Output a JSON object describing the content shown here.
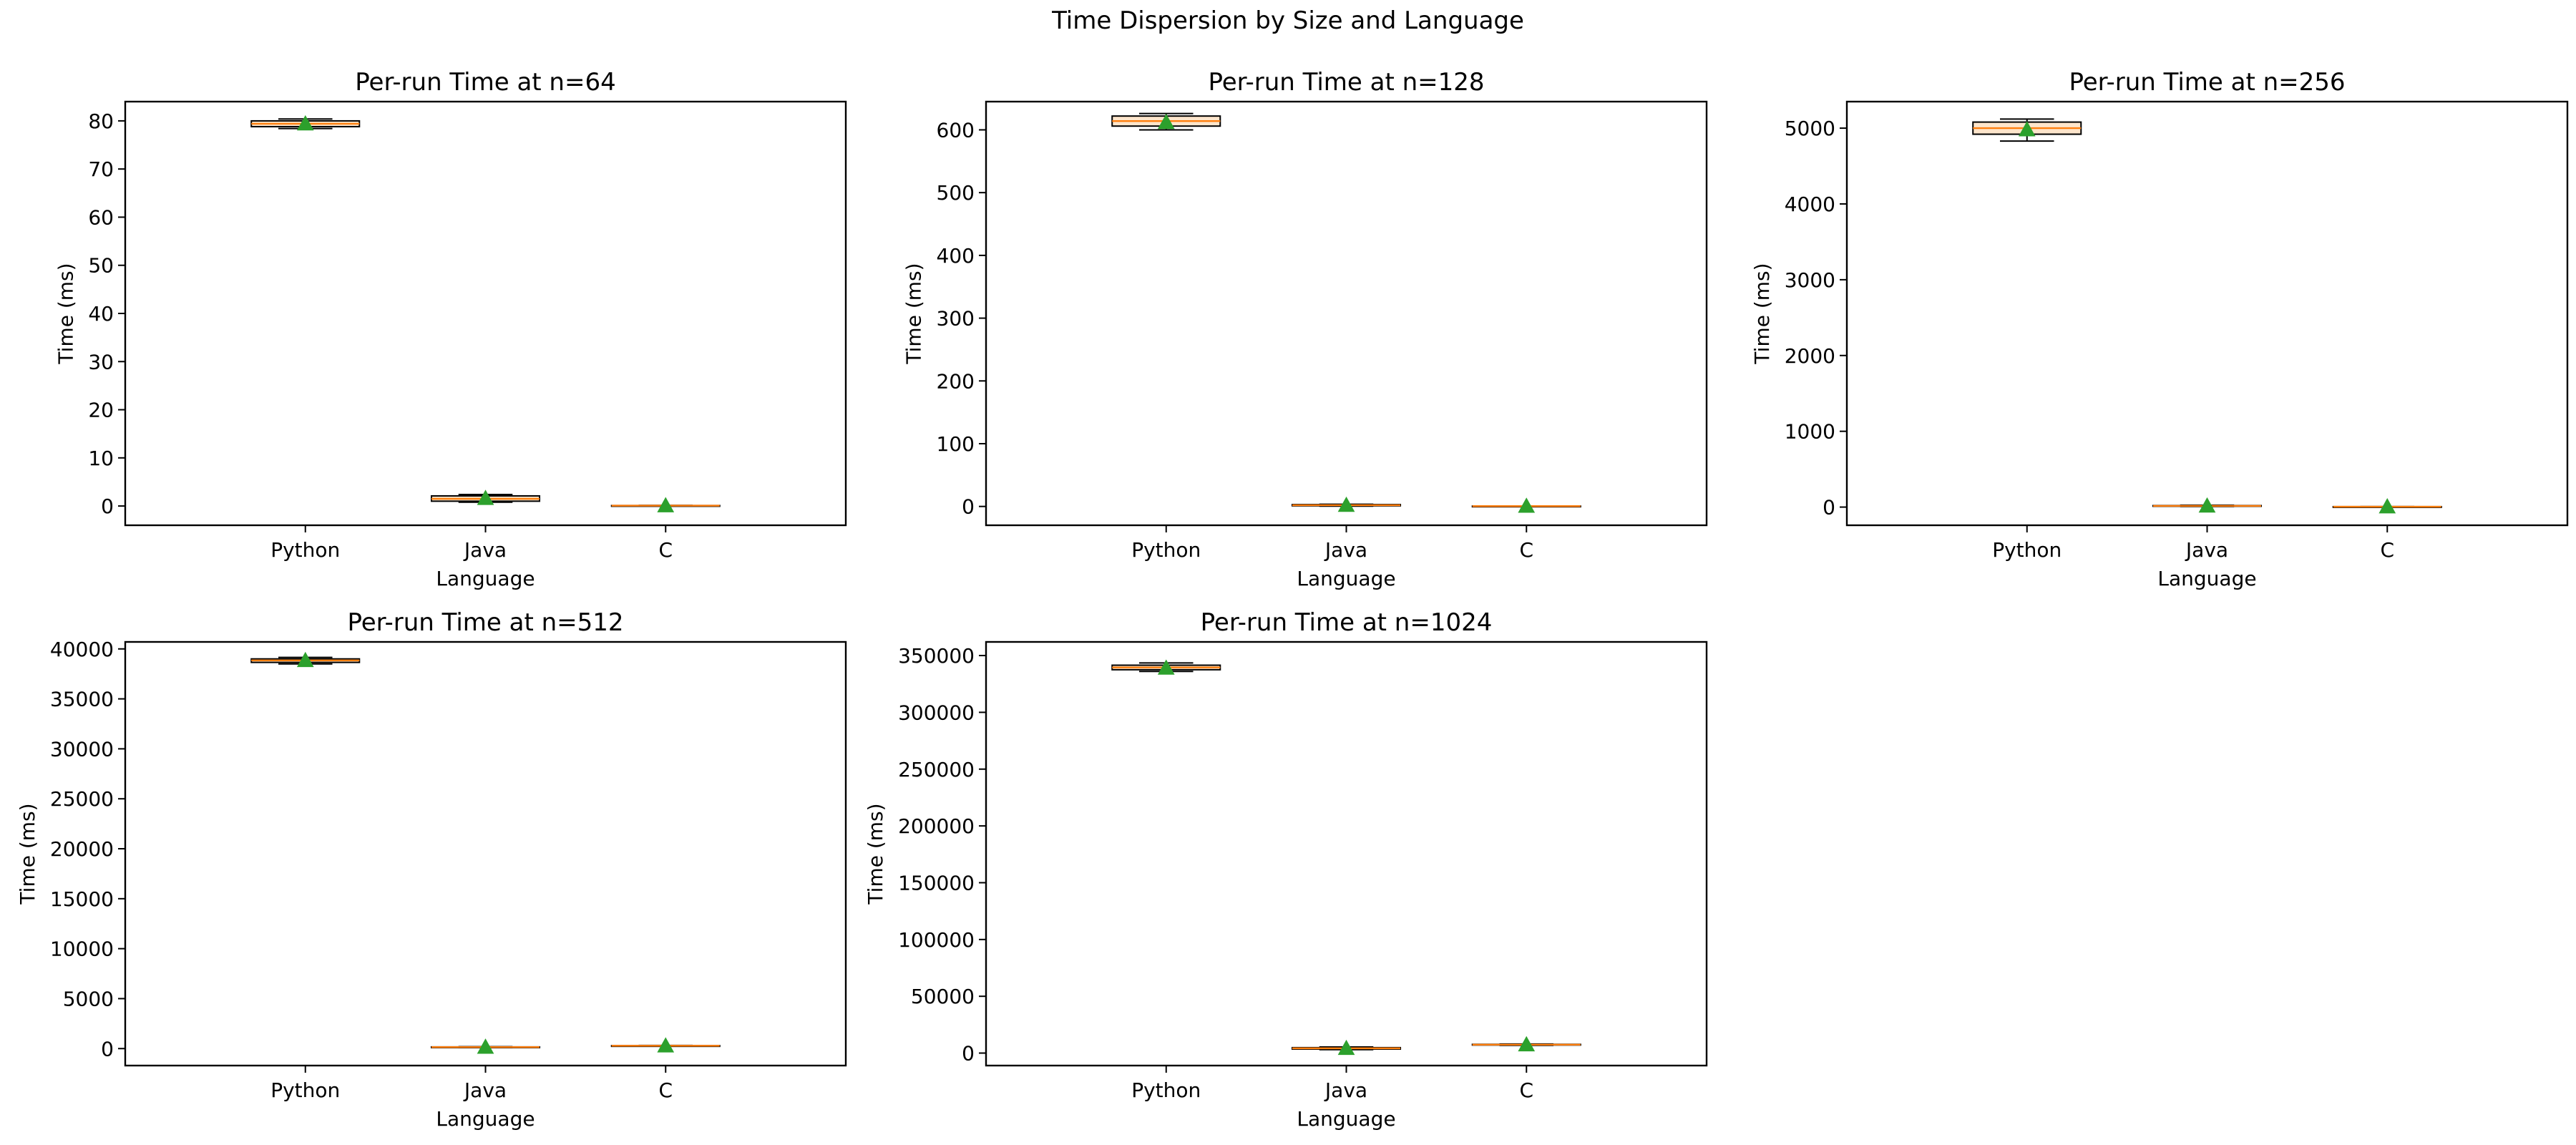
{
  "figure": {
    "suptitle": "Time Dispersion by Size and Language"
  },
  "chart_data": [
    {
      "type": "box",
      "title": "Per-run Time at n=64",
      "xlabel": "Language",
      "ylabel": "Time (ms)",
      "categories": [
        "Python",
        "Java",
        "C"
      ],
      "category_colors": [
        "#0000ff",
        "#ffa500",
        "#800080"
      ],
      "ylim": [
        -4,
        84
      ],
      "yticks": [
        0,
        10,
        20,
        30,
        40,
        50,
        60,
        70,
        80
      ],
      "boxes": [
        {
          "whislo": 78.4,
          "q1": 78.8,
          "med": 79.4,
          "q3": 80.0,
          "whishi": 80.4,
          "mean": 79.4
        },
        {
          "whislo": 0.8,
          "q1": 1.0,
          "med": 1.5,
          "q3": 2.1,
          "whishi": 2.4,
          "mean": 1.6
        },
        {
          "whislo": 0.05,
          "q1": 0.07,
          "med": 0.08,
          "q3": 0.1,
          "whishi": 0.12,
          "mean": 0.08
        }
      ]
    },
    {
      "type": "box",
      "title": "Per-run Time at n=128",
      "xlabel": "Language",
      "ylabel": "Time (ms)",
      "categories": [
        "Python",
        "Java",
        "C"
      ],
      "category_colors": [
        "#0000ff",
        "#ffa500",
        "#800080"
      ],
      "ylim": [
        -30,
        645
      ],
      "yticks": [
        0,
        100,
        200,
        300,
        400,
        500,
        600
      ],
      "boxes": [
        {
          "whislo": 600,
          "q1": 606,
          "med": 614,
          "q3": 622,
          "whishi": 626,
          "mean": 612
        },
        {
          "whislo": 0.5,
          "q1": 1.0,
          "med": 2.0,
          "q3": 3.0,
          "whishi": 3.5,
          "mean": 2.0
        },
        {
          "whislo": 0.3,
          "q1": 0.4,
          "med": 0.5,
          "q3": 0.6,
          "whishi": 0.7,
          "mean": 0.5
        }
      ]
    },
    {
      "type": "box",
      "title": "Per-run Time at n=256",
      "xlabel": "Language",
      "ylabel": "Time (ms)",
      "categories": [
        "Python",
        "Java",
        "C"
      ],
      "category_colors": [
        "#0000ff",
        "#ffa500",
        "#800080"
      ],
      "ylim": [
        -240,
        5350
      ],
      "yticks": [
        0,
        1000,
        2000,
        3000,
        4000,
        5000
      ],
      "boxes": [
        {
          "whislo": 4830,
          "q1": 4920,
          "med": 5000,
          "q3": 5080,
          "whishi": 5120,
          "mean": 4980
        },
        {
          "whislo": 8,
          "q1": 12,
          "med": 16,
          "q3": 20,
          "whishi": 24,
          "mean": 16
        },
        {
          "whislo": 3,
          "q1": 4,
          "med": 5,
          "q3": 6,
          "whishi": 7,
          "mean": 5
        }
      ]
    },
    {
      "type": "box",
      "title": "Per-run Time at n=512",
      "xlabel": "Language",
      "ylabel": "Time (ms)",
      "categories": [
        "Python",
        "Java",
        "C"
      ],
      "category_colors": [
        "#0000ff",
        "#ffa500",
        "#800080"
      ],
      "ylim": [
        -1700,
        40700
      ],
      "yticks": [
        0,
        5000,
        10000,
        15000,
        20000,
        25000,
        30000,
        35000,
        40000
      ],
      "boxes": [
        {
          "whislo": 38500,
          "q1": 38650,
          "med": 38850,
          "q3": 39000,
          "whishi": 39150,
          "mean": 38850
        },
        {
          "whislo": 110,
          "q1": 130,
          "med": 150,
          "q3": 170,
          "whishi": 190,
          "mean": 150
        },
        {
          "whislo": 250,
          "q1": 265,
          "med": 280,
          "q3": 295,
          "whishi": 310,
          "mean": 280
        }
      ]
    },
    {
      "type": "box",
      "title": "Per-run Time at n=1024",
      "xlabel": "Language",
      "ylabel": "Time (ms)",
      "categories": [
        "Python",
        "Java",
        "C"
      ],
      "category_colors": [
        "#0000ff",
        "#ffa500",
        "#800080"
      ],
      "ylim": [
        -11000,
        362000
      ],
      "yticks": [
        0,
        50000,
        100000,
        150000,
        200000,
        250000,
        300000,
        350000
      ],
      "boxes": [
        {
          "whislo": 336000,
          "q1": 337500,
          "med": 339500,
          "q3": 341500,
          "whishi": 343500,
          "mean": 339000
        },
        {
          "whislo": 3000,
          "q1": 3500,
          "med": 4200,
          "q3": 4800,
          "whishi": 5400,
          "mean": 4200
        },
        {
          "whislo": 6800,
          "q1": 7100,
          "med": 7400,
          "q3": 7700,
          "whishi": 8000,
          "mean": 7400
        }
      ]
    }
  ]
}
